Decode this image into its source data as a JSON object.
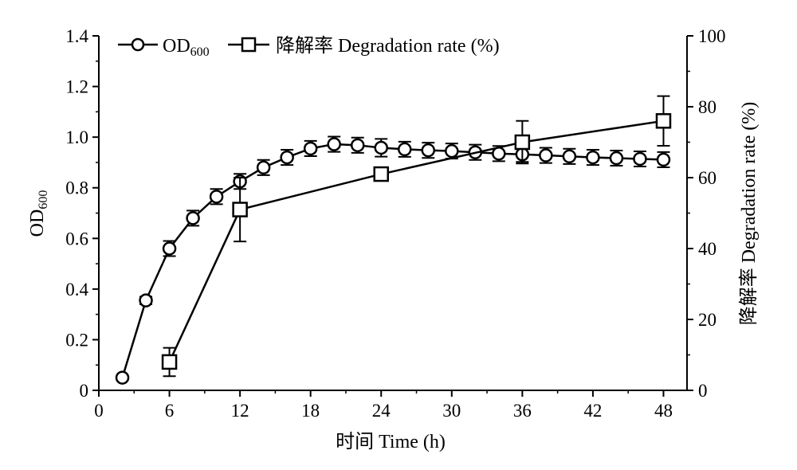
{
  "chart_data": {
    "type": "line",
    "xlabel": "时间 Time (h)",
    "ylabel_left": {
      "main": "OD",
      "sub": "600"
    },
    "ylabel_right": "降解率 Degradation rate (%)",
    "xlim": [
      0,
      50
    ],
    "xticks": [
      "0",
      "6",
      "12",
      "18",
      "24",
      "30",
      "36",
      "42",
      "48"
    ],
    "ylim_left": [
      0,
      1.4
    ],
    "yticks_left": [
      "0",
      "0.2",
      "0.4",
      "0.6",
      "0.8",
      "1.0",
      "1.2",
      "1.4"
    ],
    "ylim_right": [
      0,
      100
    ],
    "yticks_right": [
      "0",
      "20",
      "40",
      "60",
      "80",
      "100"
    ],
    "legend_position": "top-left",
    "grid": false,
    "series": [
      {
        "name": "OD",
        "name_sub": "600",
        "marker": "circle",
        "axis": "left",
        "x": [
          2,
          4,
          6,
          8,
          10,
          12,
          14,
          16,
          18,
          20,
          22,
          24,
          26,
          28,
          30,
          32,
          34,
          36,
          38,
          40,
          42,
          44,
          46,
          48
        ],
        "y": [
          0.05,
          0.355,
          0.56,
          0.68,
          0.765,
          0.825,
          0.88,
          0.92,
          0.955,
          0.972,
          0.968,
          0.958,
          0.952,
          0.948,
          0.945,
          0.94,
          0.935,
          0.932,
          0.928,
          0.924,
          0.92,
          0.917,
          0.914,
          0.911
        ],
        "error": [
          0,
          0.015,
          0.03,
          0.03,
          0.03,
          0.03,
          0.03,
          0.03,
          0.03,
          0.03,
          0.03,
          0.035,
          0.03,
          0.03,
          0.03,
          0.03,
          0.03,
          0.03,
          0.03,
          0.03,
          0.03,
          0.03,
          0.03,
          0.03
        ]
      },
      {
        "name": "降解率 Degradation rate (%)",
        "marker": "square",
        "axis": "right",
        "x": [
          6,
          12,
          24,
          36,
          48
        ],
        "y": [
          8,
          51,
          61,
          70,
          76
        ],
        "error": [
          4,
          9,
          0,
          6,
          7
        ]
      }
    ]
  }
}
